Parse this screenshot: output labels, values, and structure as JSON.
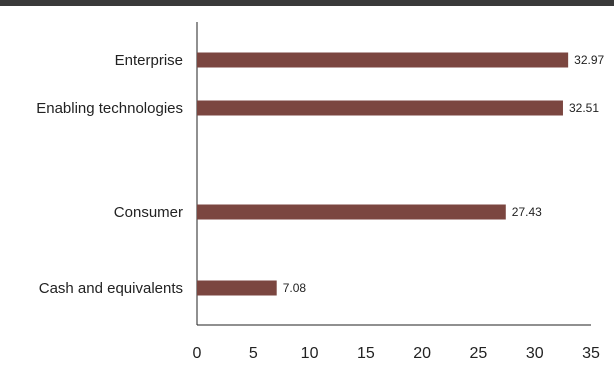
{
  "chart_data": {
    "type": "bar",
    "orientation": "horizontal",
    "categories": [
      "Enterprise",
      "Enabling technologies",
      "Consumer",
      "Cash and equivalents"
    ],
    "values": [
      32.97,
      32.51,
      27.43,
      7.08
    ],
    "value_labels": [
      "32.97",
      "32.51",
      "27.43",
      "7.08"
    ],
    "xlim": [
      0,
      35
    ],
    "x_ticks": [
      0,
      5,
      10,
      15,
      20,
      25,
      30,
      35
    ],
    "x_tick_labels": [
      "0",
      "5",
      "10",
      "15",
      "20",
      "25",
      "30",
      "35"
    ],
    "bar_color": "#7b4640",
    "grid": false,
    "legend": "none"
  }
}
